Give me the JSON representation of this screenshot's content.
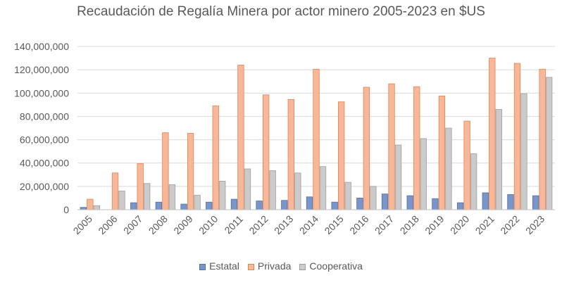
{
  "chart_data": {
    "type": "bar",
    "title": "Recaudación de Regalía Minera por actor minero 2005-2023 en $US",
    "xlabel": "",
    "ylabel": "",
    "ylim": [
      0,
      140000000
    ],
    "yticks": [
      0,
      20000000,
      40000000,
      60000000,
      80000000,
      100000000,
      120000000,
      140000000
    ],
    "ytick_labels": [
      "0",
      "20,000,000",
      "40,000,000",
      "60,000,000",
      "80,000,000",
      "100,000,000",
      "120,000,000",
      "140,000,000"
    ],
    "grid": true,
    "legend_position": "bottom",
    "categories": [
      "2005",
      "2006",
      "2007",
      "2008",
      "2009",
      "2010",
      "2011",
      "2012",
      "2013",
      "2014",
      "2015",
      "2016",
      "2017",
      "2018",
      "2019",
      "2020",
      "2021",
      "2022",
      "2023"
    ],
    "series": [
      {
        "name": "Estatal",
        "color": "#7a95c9",
        "border": "#4f6fa8",
        "values": [
          2000000,
          0,
          6000000,
          6500000,
          4800000,
          6500000,
          9000000,
          7500000,
          8000000,
          11000000,
          6500000,
          10000000,
          13500000,
          12000000,
          9500000,
          6000000,
          14500000,
          13000000,
          12000000
        ]
      },
      {
        "name": "Privada",
        "color": "#f6b899",
        "border": "#e8804f",
        "values": [
          9000000,
          31500000,
          39500000,
          66000000,
          65500000,
          89000000,
          124000000,
          98500000,
          94500000,
          120500000,
          92500000,
          105000000,
          108000000,
          105500000,
          97500000,
          76000000,
          130000000,
          125500000,
          120500000
        ]
      },
      {
        "name": "Cooperativa",
        "color": "#cbcbcb",
        "border": "#9e9e9e",
        "values": [
          3500000,
          16000000,
          22500000,
          21500000,
          12500000,
          24500000,
          35000000,
          33500000,
          31500000,
          37000000,
          23500000,
          20000000,
          55500000,
          61000000,
          70000000,
          48000000,
          86000000,
          99500000,
          113500000
        ]
      }
    ]
  }
}
